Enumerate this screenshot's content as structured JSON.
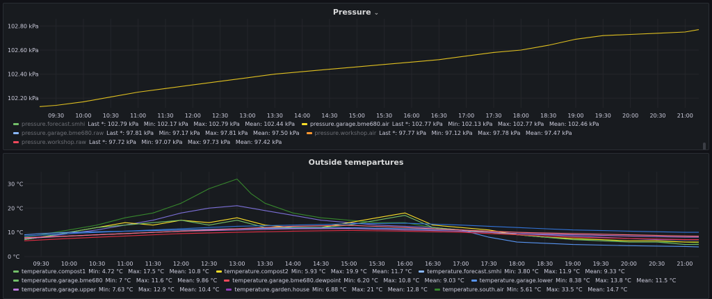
{
  "pressure": {
    "title": "Pressure",
    "chev": "⌄",
    "chart_data": {
      "type": "line",
      "yticks": [
        "102.80 kPa",
        "102.60 kPa",
        "102.40 kPa",
        "102.20 kPa"
      ],
      "ytick_values": [
        102.8,
        102.6,
        102.4,
        102.2
      ],
      "ylim": [
        102.12,
        102.86
      ],
      "xticks": [
        "09:30",
        "10:00",
        "10:30",
        "11:00",
        "11:30",
        "12:00",
        "12:30",
        "13:00",
        "13:30",
        "14:00",
        "14:30",
        "15:00",
        "15:30",
        "16:00",
        "16:30",
        "17:00",
        "17:30",
        "18:00",
        "18:30",
        "19:00",
        "19:30",
        "20:00",
        "20:30",
        "21:00"
      ],
      "series": [
        {
          "name": "pressure.garage.bme680.air",
          "color": "#e0c020",
          "x": [
            9.2,
            9.5,
            10,
            10.5,
            11,
            11.5,
            12,
            12.5,
            13,
            13.5,
            14,
            14.5,
            15,
            15.5,
            16,
            16.5,
            17,
            17.5,
            18,
            18.5,
            19,
            19.5,
            20,
            20.5,
            21,
            21.25
          ],
          "values": [
            102.13,
            102.14,
            102.17,
            102.21,
            102.25,
            102.28,
            102.31,
            102.34,
            102.37,
            102.4,
            102.42,
            102.44,
            102.46,
            102.48,
            102.5,
            102.52,
            102.55,
            102.58,
            102.6,
            102.64,
            102.69,
            102.72,
            102.73,
            102.74,
            102.75,
            102.77
          ]
        }
      ]
    },
    "legend": [
      [
        {
          "name": "pressure.forecast.smhi",
          "color": "#73bf69",
          "dim": true,
          "stats": "Last *: 102.79 kPa   Min: 102.17 kPa   Max: 102.79 kPa   Mean: 102.44 kPa"
        },
        {
          "name": "pressure.garage.bme680.air",
          "color": "#fade2a",
          "dim": false,
          "stats": "Last *: 102.77 kPa   Min: 102.13 kPa   Max: 102.77 kPa   Mean: 102.46 kPa"
        }
      ],
      [
        {
          "name": "pressure.garage.bme680.raw",
          "color": "#8ab8ff",
          "dim": true,
          "stats": "Last *: 97.81 kPa   Min: 97.17 kPa   Max: 97.81 kPa   Mean: 97.50 kPa"
        },
        {
          "name": "pressure.workshop.air",
          "color": "#ff9830",
          "dim": true,
          "stats": "Last *: 97.77 kPa   Min: 97.12 kPa   Max: 97.78 kPa   Mean: 97.47 kPa"
        }
      ],
      [
        {
          "name": "pressure.workshop.raw",
          "color": "#f2495c",
          "dim": true,
          "stats": "Last *: 97.72 kPa   Min: 97.07 kPa   Max: 97.73 kPa   Mean: 97.42 kPa"
        }
      ]
    ]
  },
  "temperature": {
    "title": "Outside temepartures",
    "chart_data": {
      "type": "line",
      "yticks": [
        "30 °C",
        "20 °C",
        "10 °C",
        "0 °C"
      ],
      "ytick_values": [
        30,
        20,
        10,
        0
      ],
      "ylim": [
        0,
        35
      ],
      "xticks": [
        "09:30",
        "10:00",
        "10:30",
        "11:00",
        "11:30",
        "12:00",
        "12:30",
        "13:00",
        "13:30",
        "14:00",
        "14:30",
        "15:00",
        "15:30",
        "16:00",
        "16:30",
        "17:00",
        "17:30",
        "18:00",
        "18:30",
        "19:00",
        "19:30",
        "20:00",
        "20:30",
        "21:00"
      ],
      "series": [
        {
          "name": "temperature.south.air",
          "color": "#37872d",
          "x": [
            9.2,
            9.5,
            10,
            10.5,
            11,
            11.5,
            12,
            12.25,
            12.5,
            12.75,
            13,
            13.25,
            13.5,
            14,
            14.5,
            15,
            15.5,
            16,
            16.5,
            17,
            17.5,
            18,
            18.5,
            19,
            19.5,
            20,
            20.5,
            21,
            21.25
          ],
          "values": [
            8,
            9,
            11,
            13,
            16,
            18,
            22,
            25,
            28,
            30,
            32,
            26,
            22,
            18,
            16,
            15,
            14,
            14,
            12,
            11,
            10,
            9,
            8,
            7,
            7,
            6,
            6,
            6,
            5.6
          ]
        },
        {
          "name": "temperature.garden.house",
          "color": "#7b6fd6",
          "x": [
            9.2,
            9.5,
            10,
            10.5,
            11,
            11.5,
            12,
            12.5,
            13,
            13.5,
            14,
            14.5,
            15,
            15.5,
            16,
            16.5,
            17,
            17.5,
            18,
            18.5,
            19,
            19.5,
            20,
            20.5,
            21,
            21.25
          ],
          "values": [
            7,
            8,
            9.5,
            11,
            13,
            15,
            18,
            20,
            21,
            19,
            17,
            15,
            14,
            13,
            12.5,
            12,
            11,
            10,
            9.5,
            9,
            8.5,
            8,
            7.5,
            7,
            6.9,
            6.9
          ]
        },
        {
          "name": "temperature.compost2",
          "color": "#fade2a",
          "x": [
            9.2,
            9.5,
            10,
            10.5,
            11,
            11.5,
            12,
            12.5,
            13,
            13.5,
            14,
            14.5,
            15,
            15.5,
            16,
            16.5,
            17,
            17.5,
            18,
            18.5,
            19,
            19.5,
            20,
            20.5,
            21,
            21.25
          ],
          "values": [
            7,
            8,
            10,
            12,
            14,
            13,
            15,
            14,
            16,
            13,
            12,
            12,
            14,
            16,
            18,
            13,
            12,
            11,
            9,
            8,
            7.5,
            7,
            6.5,
            6.5,
            6,
            6
          ]
        },
        {
          "name": "temperature.compost1",
          "color": "#73bf69",
          "x": [
            9.2,
            9.5,
            10,
            10.5,
            11,
            11.5,
            12,
            12.5,
            13,
            13.5,
            14,
            14.5,
            15,
            15.5,
            16,
            16.5,
            17,
            17.5,
            18,
            18.5,
            19,
            19.5,
            20,
            20.5,
            21,
            21.25
          ],
          "values": [
            7,
            8,
            10,
            12,
            13,
            14,
            15,
            13,
            15,
            12,
            12,
            12,
            13,
            15,
            17,
            12,
            11,
            10,
            9,
            8,
            7,
            6.5,
            6,
            6,
            5,
            5
          ]
        },
        {
          "name": "temperature.forecast.smhi",
          "color": "#5794f2",
          "x": [
            9.2,
            9.5,
            10,
            11,
            12,
            13,
            14,
            15,
            16,
            17,
            17.5,
            18,
            19,
            20,
            21,
            21.25
          ],
          "values": [
            9,
            9.5,
            10,
            10.5,
            11,
            11.5,
            11.8,
            11.9,
            11.5,
            11,
            8,
            6,
            5,
            4.5,
            4.2,
            4
          ]
        },
        {
          "name": "temperature.garage.lower",
          "color": "#3274d9",
          "x": [
            9.2,
            10,
            11,
            12,
            13,
            14,
            15,
            16,
            17,
            18,
            19,
            20,
            21,
            21.25
          ],
          "values": [
            8.5,
            9.5,
            10.5,
            11.5,
            12.5,
            13,
            13.5,
            13.8,
            13,
            12,
            11,
            10.5,
            10,
            10
          ]
        },
        {
          "name": "temperature.garage.bme680",
          "color": "#b877d9",
          "x": [
            9.2,
            10,
            11,
            12,
            13,
            14,
            15,
            16,
            17,
            18,
            19,
            20,
            21,
            21.25
          ],
          "values": [
            7.5,
            8.5,
            9.5,
            10.5,
            11,
            11.5,
            11.6,
            11,
            10.5,
            9.5,
            9,
            8.5,
            8,
            8
          ]
        },
        {
          "name": "temperature.garage.upper",
          "color": "#ff7383",
          "x": [
            9.2,
            10,
            11,
            12,
            13,
            14,
            15,
            16,
            17,
            18,
            19,
            20,
            21,
            21.25
          ],
          "values": [
            7.8,
            8.5,
            9.5,
            10.5,
            11.5,
            12.5,
            12.9,
            12,
            11,
            10,
            9.5,
            9,
            8.5,
            8.4
          ]
        },
        {
          "name": "temperature.garage.bme680.dewpoint",
          "color": "#e02f44",
          "x": [
            9.2,
            10,
            11,
            12,
            13,
            14,
            15,
            16,
            17,
            18,
            19,
            20,
            21,
            21.25
          ],
          "values": [
            6.5,
            7.5,
            8.5,
            9.5,
            10,
            10.5,
            10.8,
            10.5,
            10,
            9,
            8,
            7.5,
            7,
            7
          ]
        }
      ]
    },
    "legend": [
      [
        {
          "name": "temperature.compost1",
          "color": "#73bf69",
          "dim": false,
          "stats": "Min: 4.72 °C   Max: 17.5 °C   Mean: 10.8 °C"
        },
        {
          "name": "temperature.compost2",
          "color": "#fade2a",
          "dim": false,
          "stats": "Min: 5.93 °C   Max: 19.9 °C   Mean: 11.7 °C"
        },
        {
          "name": "temperature.forecast.smhi",
          "color": "#8ab8ff",
          "dim": false,
          "stats": "Min: 3.80 °C   Max: 11.9 °C   Mean: 9.33 °C"
        }
      ],
      [
        {
          "name": "temperature.garage.bme680",
          "color": "#73bf69",
          "dim": false,
          "stats": "Min: 7 °C   Max: 11.6 °C   Mean: 9.86 °C"
        },
        {
          "name": "temperature.garage.bme680.dewpoint",
          "color": "#f2495c",
          "dim": false,
          "stats": "Min: 6.20 °C   Max: 10.8 °C   Mean: 9.03 °C"
        },
        {
          "name": "temperature.garage.lower",
          "color": "#5794f2",
          "dim": false,
          "stats": "Min: 8.38 °C   Max: 13.8 °C   Mean: 11.5 °C"
        }
      ],
      [
        {
          "name": "temperature.garage.upper",
          "color": "#b877d9",
          "dim": false,
          "stats": "Min: 7.63 °C   Max: 12.9 °C   Mean: 10.4 °C"
        },
        {
          "name": "temperature.garden.house",
          "color": "#8f3bb8",
          "dim": false,
          "stats": "Min: 6.88 °C   Max: 21 °C   Mean: 12.8 °C"
        },
        {
          "name": "temperature.south.air",
          "color": "#37872d",
          "dim": false,
          "stats": "Min: 5.61 °C   Max: 33.5 °C   Mean: 14.7 °C"
        }
      ]
    ]
  }
}
